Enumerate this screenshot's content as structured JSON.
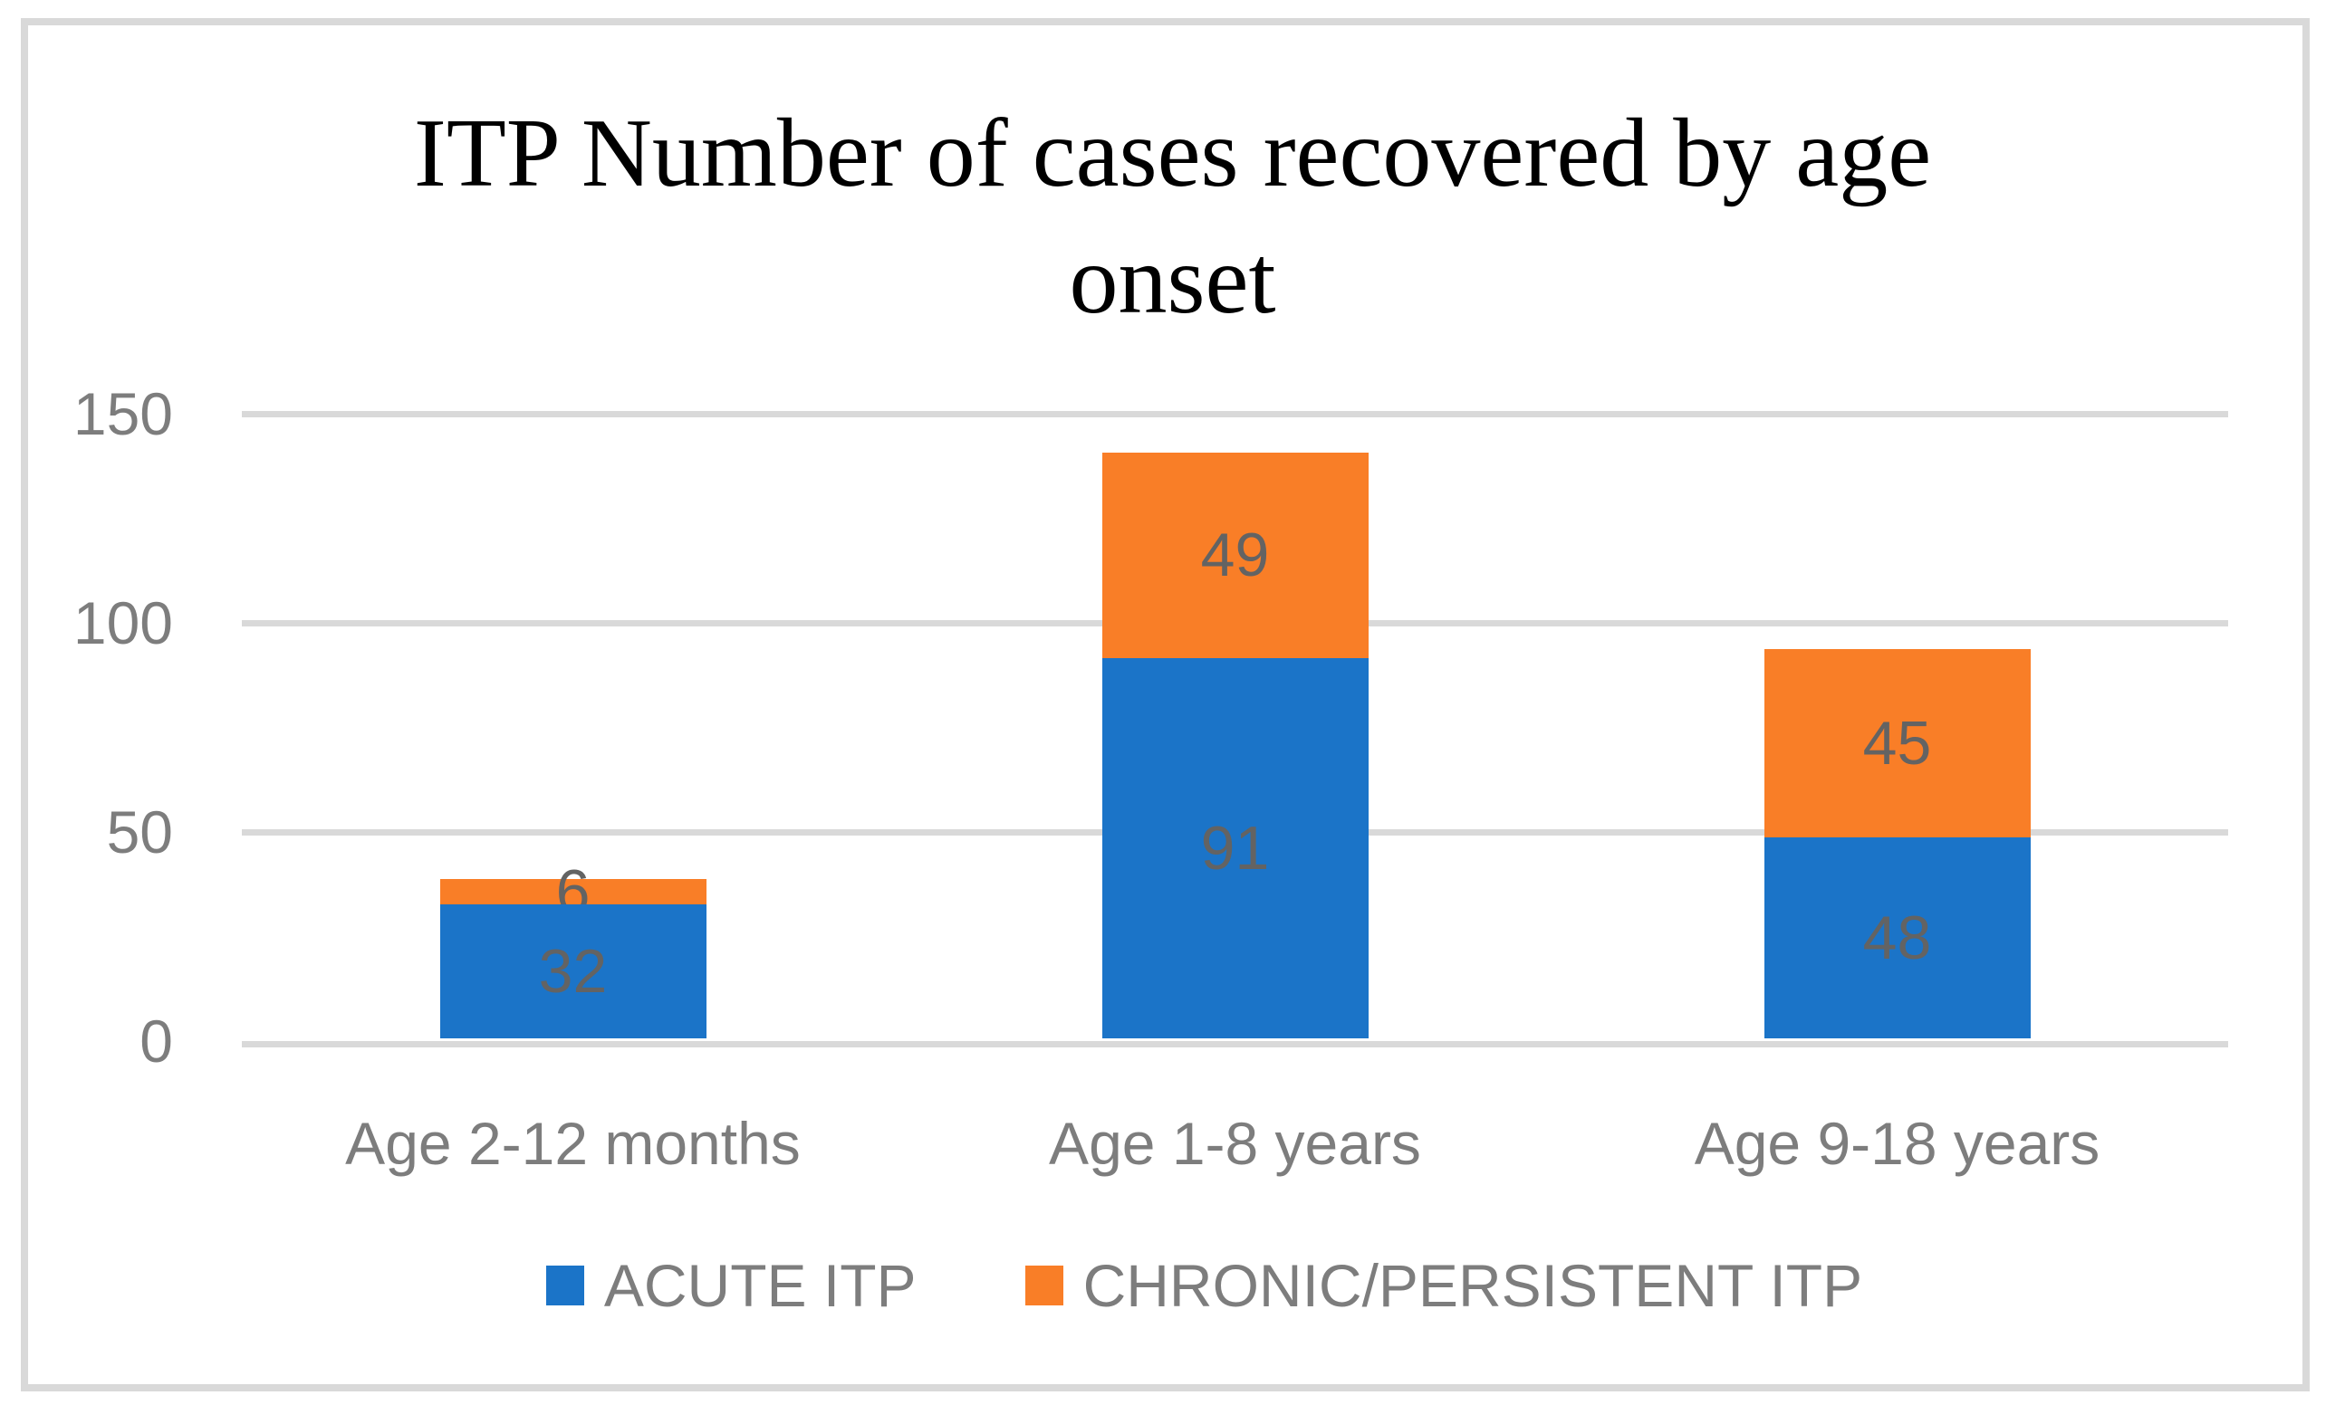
{
  "chart_data": {
    "type": "bar",
    "stacked": true,
    "title": "ITP Number of cases recovered by age onset",
    "title_lines": [
      "ITP Number of cases recovered by age",
      "onset"
    ],
    "categories": [
      "Age 2-12 months",
      "Age 1-8 years",
      "Age 9-18 years"
    ],
    "series": [
      {
        "name": "ACUTE ITP",
        "color": "#1B74C8",
        "values": [
          32,
          91,
          48
        ]
      },
      {
        "name": "CHRONIC/PERSISTENT ITP",
        "color": "#F97E27",
        "values": [
          6,
          49,
          45
        ]
      }
    ],
    "stack_totals": [
      38,
      140,
      93
    ],
    "y_ticks": [
      "150",
      "100",
      "50",
      "0"
    ],
    "ylim": [
      0,
      150
    ],
    "grid": true,
    "legend_position": "bottom",
    "data_label_placement": "center",
    "colors": {
      "gridline": "#D9D9D9",
      "frame": "#D9D9D9",
      "axis_text": "#7D7D7D",
      "data_label_text": "#636363",
      "title_text": "#000000",
      "background": "#FFFFFF"
    }
  }
}
